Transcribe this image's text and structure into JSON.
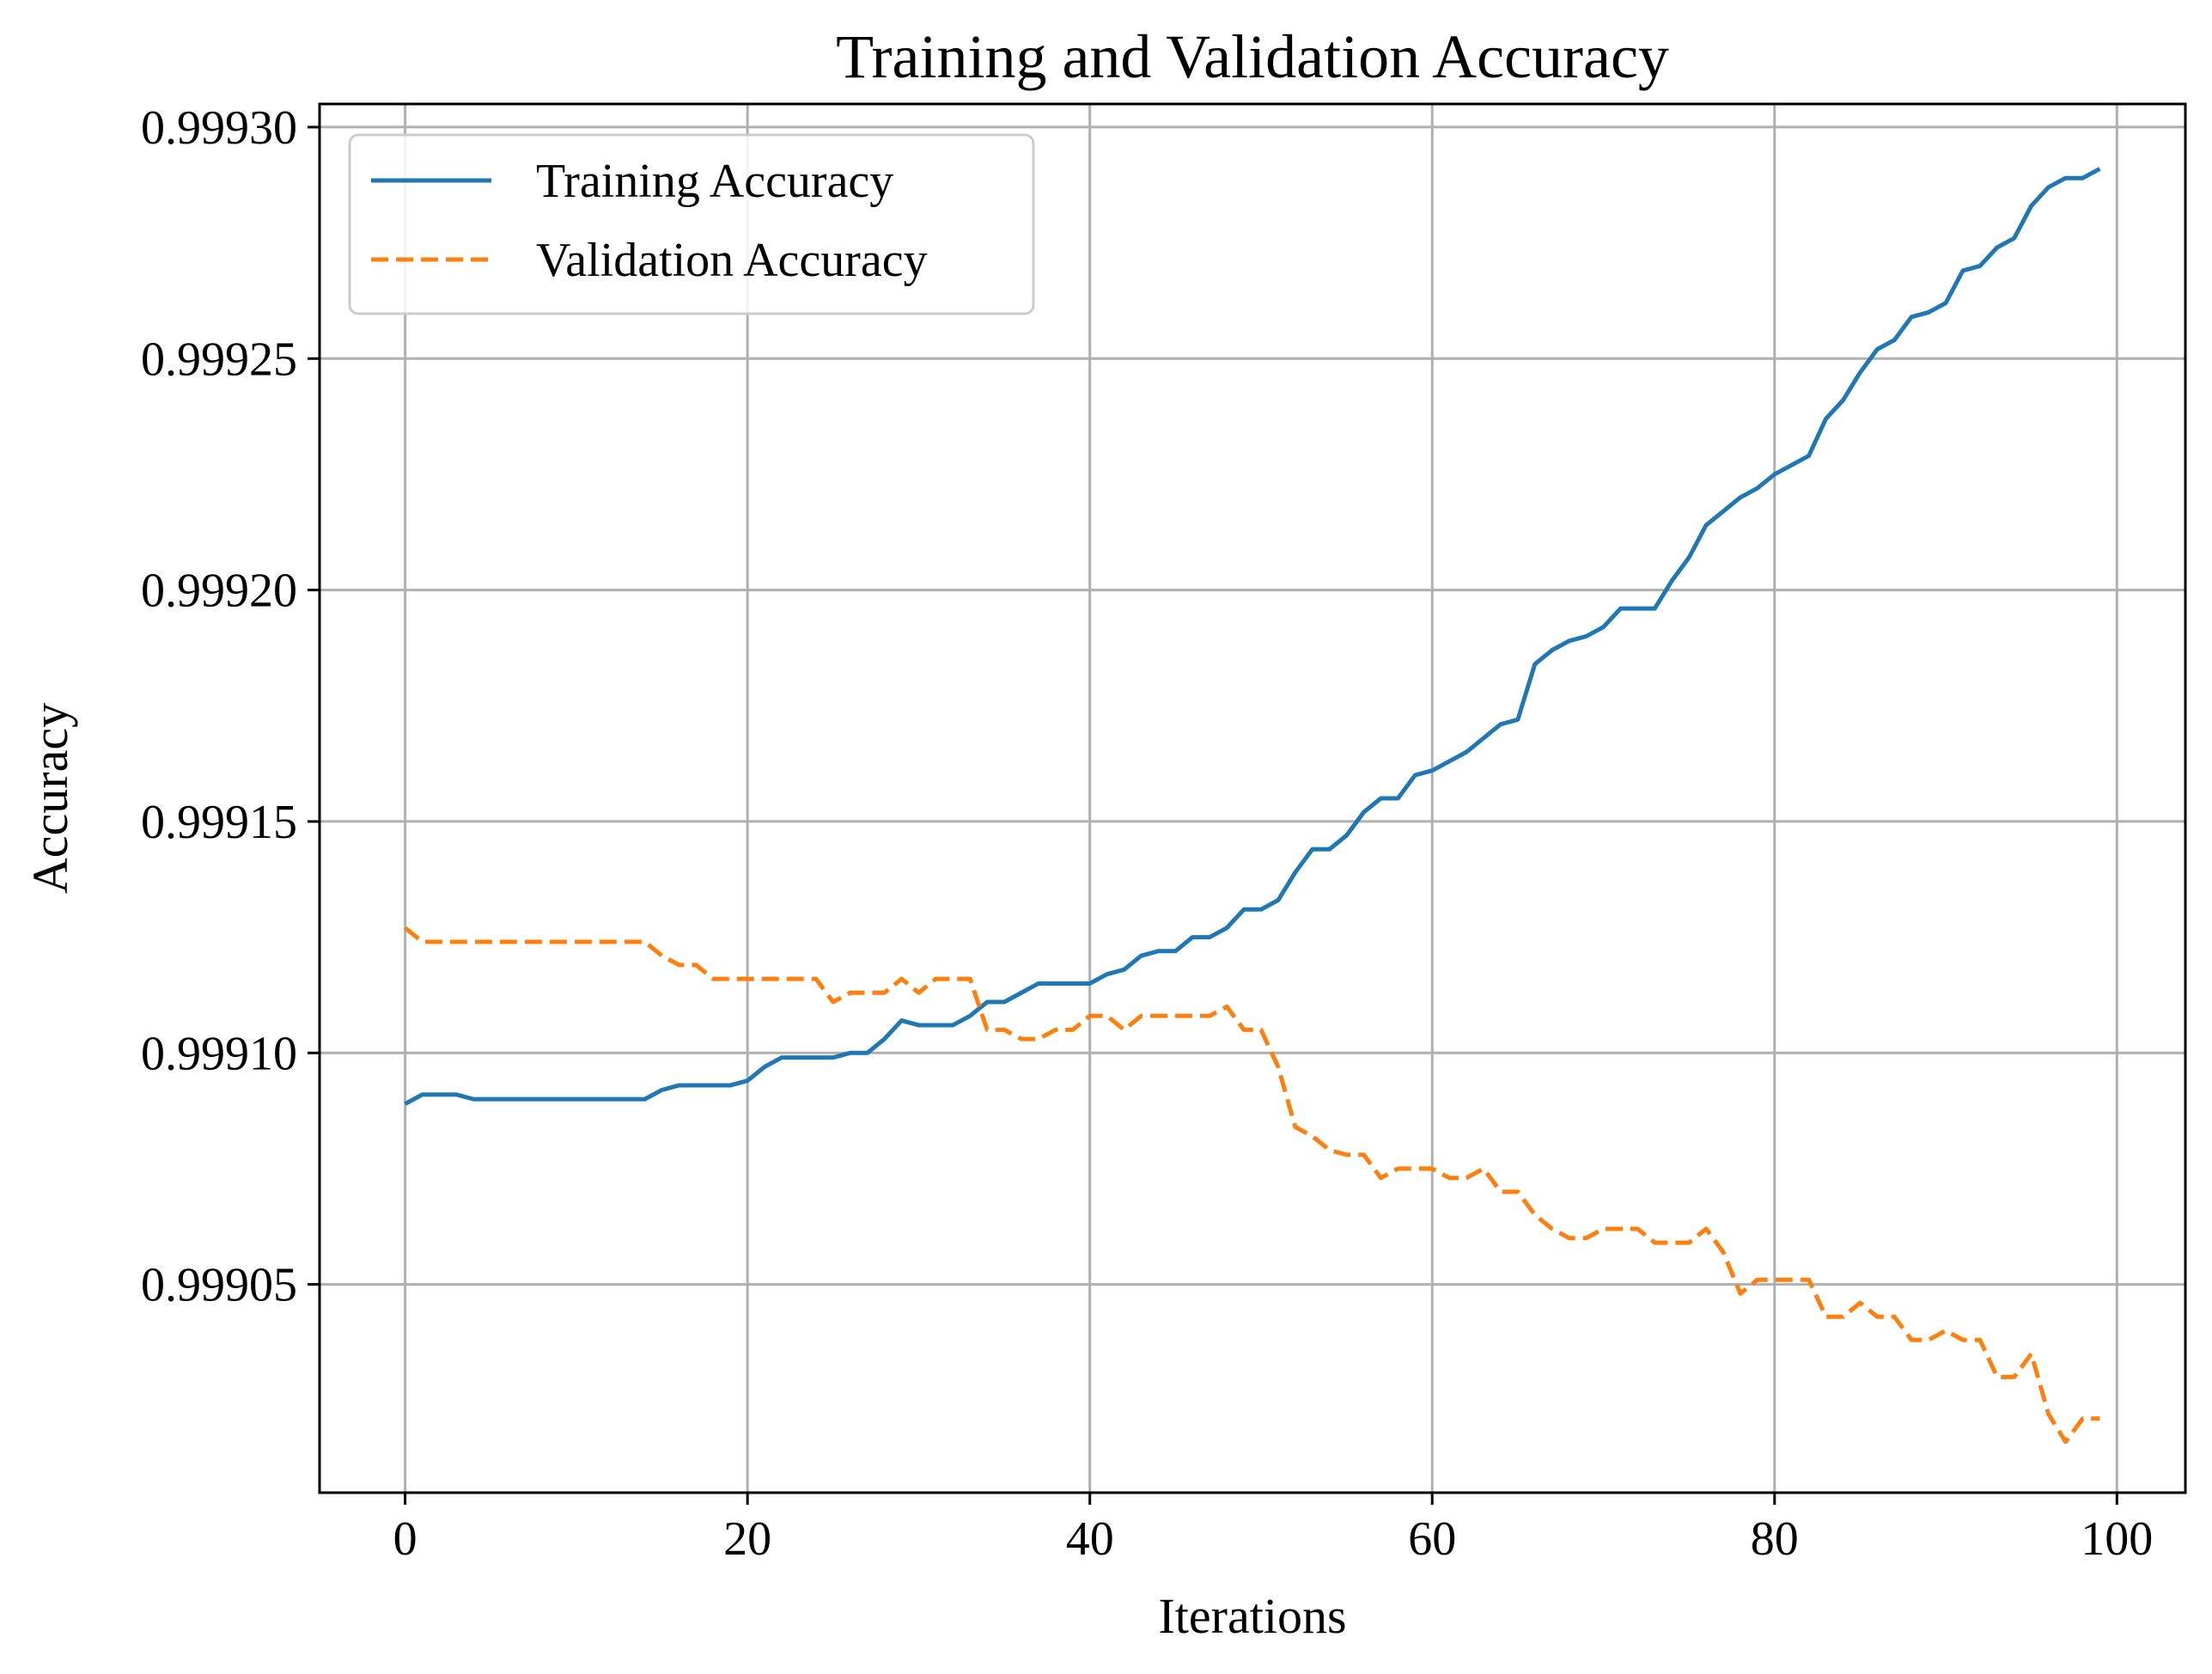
{
  "chart_data": {
    "type": "line",
    "title": "Training and Validation Accuracy",
    "xlabel": "Iterations",
    "ylabel": "Accuracy",
    "xlim": [
      -5,
      104
    ],
    "ylim": [
      0.999005,
      0.999305
    ],
    "xticks": [
      0,
      20,
      40,
      60,
      80,
      100
    ],
    "xtick_labels": [
      "0",
      "20",
      "40",
      "60",
      "80",
      "100"
    ],
    "yticks": [
      0.99905,
      0.9991,
      0.99915,
      0.9992,
      0.99925,
      0.9993
    ],
    "ytick_labels": [
      "0.99905",
      "0.99910",
      "0.99915",
      "0.99920",
      "0.99925",
      "0.99930"
    ],
    "grid": true,
    "legend_position": "top-left",
    "series": [
      {
        "name": "Training Accuracy",
        "color": "#1f77b4",
        "style": "solid",
        "values": [
          0.999089,
          0.999091,
          0.999091,
          0.999091,
          0.99909,
          0.99909,
          0.99909,
          0.99909,
          0.99909,
          0.99909,
          0.99909,
          0.99909,
          0.99909,
          0.99909,
          0.99909,
          0.999092,
          0.999093,
          0.999093,
          0.999093,
          0.999093,
          0.999094,
          0.999097,
          0.999099,
          0.999099,
          0.999099,
          0.999099,
          0.9991,
          0.9991,
          0.999103,
          0.999107,
          0.999106,
          0.999106,
          0.999106,
          0.999108,
          0.999111,
          0.999111,
          0.999113,
          0.999115,
          0.999115,
          0.999115,
          0.999115,
          0.999117,
          0.999118,
          0.999121,
          0.999122,
          0.999122,
          0.999125,
          0.999125,
          0.999127,
          0.999131,
          0.999131,
          0.999133,
          0.999139,
          0.999144,
          0.999144,
          0.999147,
          0.999152,
          0.999155,
          0.999155,
          0.99916,
          0.999161,
          0.999163,
          0.999165,
          0.999168,
          0.999171,
          0.999172,
          0.999184,
          0.999187,
          0.999189,
          0.99919,
          0.999192,
          0.999196,
          0.999196,
          0.999196,
          0.999202,
          0.999207,
          0.999214,
          0.999217,
          0.99922,
          0.999222,
          0.999225,
          0.999227,
          0.999229,
          0.999237,
          0.999241,
          0.999247,
          0.999252,
          0.999254,
          0.999259,
          0.99926,
          0.999262,
          0.999269,
          0.99927,
          0.999274,
          0.999276,
          0.999283,
          0.999287,
          0.999289,
          0.999289,
          0.999291
        ]
      },
      {
        "name": "Validation Accuracy",
        "color": "#ff7f0e",
        "style": "dashed",
        "values": [
          0.999127,
          0.999124,
          0.999124,
          0.999124,
          0.999124,
          0.999124,
          0.999124,
          0.999124,
          0.999124,
          0.999124,
          0.999124,
          0.999124,
          0.999124,
          0.999124,
          0.999124,
          0.999121,
          0.999119,
          0.999119,
          0.999116,
          0.999116,
          0.999116,
          0.999116,
          0.999116,
          0.999116,
          0.999116,
          0.999111,
          0.999113,
          0.999113,
          0.999113,
          0.999116,
          0.999113,
          0.999116,
          0.999116,
          0.999116,
          0.999105,
          0.999105,
          0.999103,
          0.999103,
          0.999105,
          0.999105,
          0.999108,
          0.999108,
          0.999105,
          0.999108,
          0.999108,
          0.999108,
          0.999108,
          0.999108,
          0.99911,
          0.999105,
          0.999105,
          0.999097,
          0.999084,
          0.999082,
          0.999079,
          0.999078,
          0.999078,
          0.999073,
          0.999075,
          0.999075,
          0.999075,
          0.999073,
          0.999073,
          0.999075,
          0.99907,
          0.99907,
          0.999065,
          0.999062,
          0.99906,
          0.99906,
          0.999062,
          0.999062,
          0.999062,
          0.999059,
          0.999059,
          0.999059,
          0.999062,
          0.999057,
          0.999048,
          0.999051,
          0.999051,
          0.999051,
          0.999051,
          0.999043,
          0.999043,
          0.999046,
          0.999043,
          0.999043,
          0.999038,
          0.999038,
          0.99904,
          0.999038,
          0.999038,
          0.99903,
          0.99903,
          0.999035,
          0.999022,
          0.999016,
          0.999021,
          0.999021
        ]
      }
    ]
  }
}
